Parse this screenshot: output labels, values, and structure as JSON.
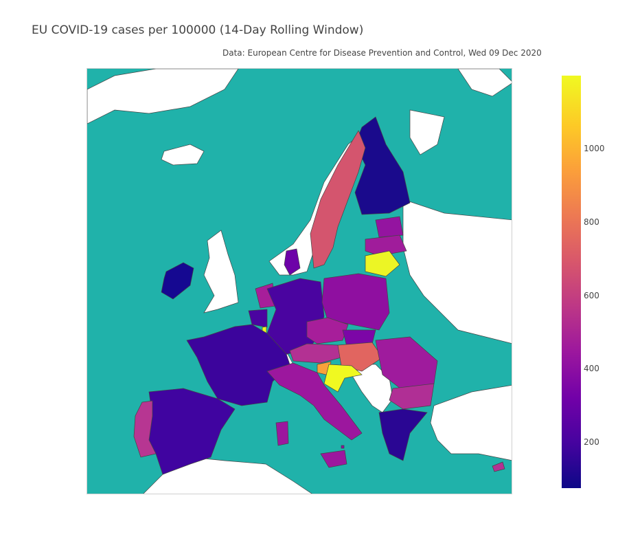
{
  "title": "EU COVID-19 cases per 100000 (14-Day Rolling Window)",
  "subtitle": "Data: European Centre for Disease Prevention and Control, Wed 09 Dec 2020",
  "colors": {
    "ocean": "#20b2aa",
    "land_nonEU": "#ffffff",
    "border": "#444444",
    "scale": [
      "#0d0887",
      "#46039f",
      "#7201a8",
      "#9c179e",
      "#bd3786",
      "#d8576b",
      "#ed7953",
      "#fb9f3a",
      "#fdca26",
      "#f0f921"
    ]
  },
  "colorbar": {
    "range": [
      70,
      1200
    ],
    "ticks": [
      "200",
      "400",
      "600",
      "800",
      "1000"
    ]
  },
  "chart_data": {
    "type": "choropleth",
    "value_range": [
      70,
      1200
    ],
    "countries": [
      {
        "name": "Finland",
        "value": 110
      },
      {
        "name": "Ireland",
        "value": 100
      },
      {
        "name": "Sweden",
        "value": 700
      },
      {
        "name": "Estonia",
        "value": 470
      },
      {
        "name": "Latvia",
        "value": 500
      },
      {
        "name": "Lithuania",
        "value": 1190
      },
      {
        "name": "Denmark",
        "value": 400
      },
      {
        "name": "Netherlands",
        "value": 560
      },
      {
        "name": "Belgium",
        "value": 330
      },
      {
        "name": "Luxembourg",
        "value": 1170
      },
      {
        "name": "Germany",
        "value": 330
      },
      {
        "name": "Poland",
        "value": 470
      },
      {
        "name": "Czechia",
        "value": 560
      },
      {
        "name": "Slovakia",
        "value": 420
      },
      {
        "name": "Austria",
        "value": 640
      },
      {
        "name": "Hungary",
        "value": 740
      },
      {
        "name": "Slovenia",
        "value": 1000
      },
      {
        "name": "Croatia",
        "value": 1180
      },
      {
        "name": "Romania",
        "value": 500
      },
      {
        "name": "Bulgaria",
        "value": 580
      },
      {
        "name": "Greece",
        "value": 230
      },
      {
        "name": "Cyprus",
        "value": 590
      },
      {
        "name": "Malta",
        "value": 460
      },
      {
        "name": "France",
        "value": 280
      },
      {
        "name": "Spain",
        "value": 310
      },
      {
        "name": "Portugal",
        "value": 610
      },
      {
        "name": "Italy",
        "value": 510
      }
    ]
  }
}
